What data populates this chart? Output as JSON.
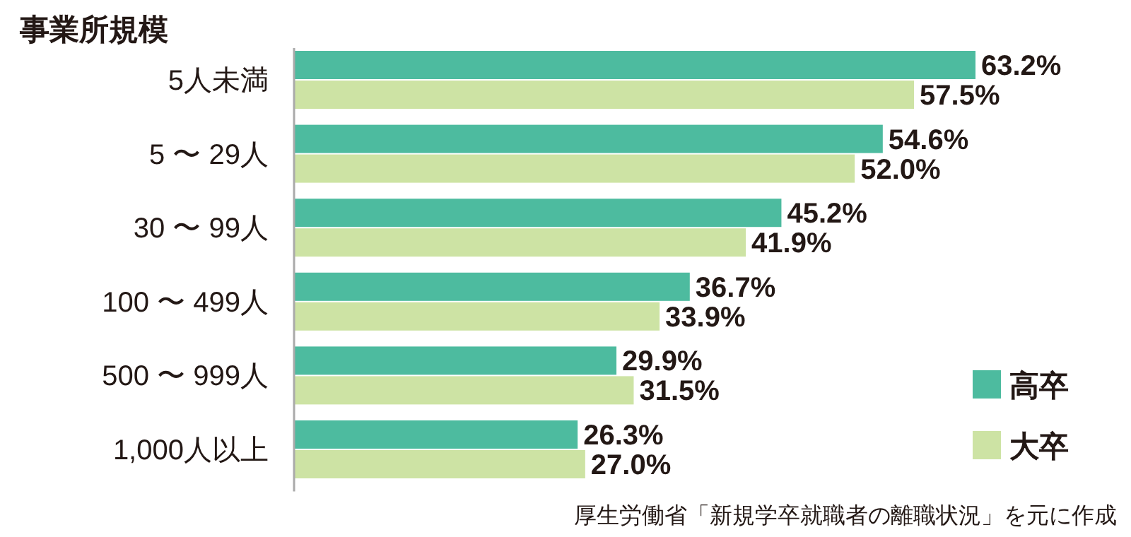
{
  "chart_data": {
    "type": "bar",
    "orientation": "horizontal",
    "title": "事業所規模",
    "categories": [
      "5人未満",
      "5 〜 29人",
      "30 〜 99人",
      "100 〜 499人",
      "500 〜 999人",
      "1,000人以上"
    ],
    "series": [
      {
        "name": "高卒",
        "color": "#4dbb9f",
        "values": [
          63.2,
          54.6,
          45.2,
          36.7,
          29.9,
          26.3
        ],
        "value_labels": [
          "63.2%",
          "54.6%",
          "45.2%",
          "36.7%",
          "29.9%",
          "26.3%"
        ]
      },
      {
        "name": "大卒",
        "color": "#cde3a4",
        "values": [
          57.5,
          52.0,
          41.9,
          33.9,
          31.5,
          27.0
        ],
        "value_labels": [
          "57.5%",
          "52.0%",
          "41.9%",
          "33.9%",
          "31.5%",
          "27.0%"
        ]
      }
    ],
    "legend": "bottom right",
    "annotations": [
      "厚生労働省「新規学卒就職者の離職状況」を元に作成"
    ]
  }
}
